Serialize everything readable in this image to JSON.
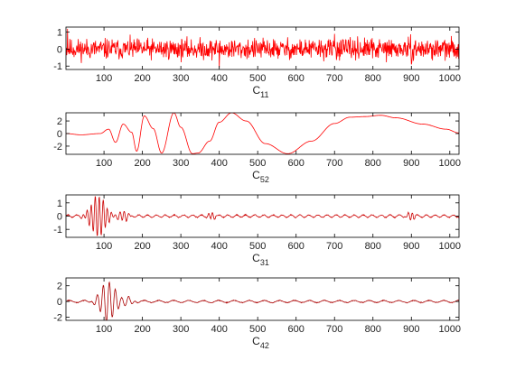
{
  "figure": {
    "background": "#ffffff"
  },
  "chart_data": [
    {
      "type": "line",
      "xlabel": "C",
      "xlabel_sub": "11",
      "xlim": [
        1,
        1024
      ],
      "ylim": [
        -1.2,
        1.3
      ],
      "xticks": [
        100,
        200,
        300,
        400,
        500,
        600,
        700,
        800,
        900,
        1000
      ],
      "yticks": [
        -1,
        0,
        1
      ],
      "color": "#ff0000",
      "signal": {
        "kind": "noise",
        "amp": 0.5,
        "spikes": [
          [
            5,
            1.2
          ],
          [
            400,
            -1.1
          ],
          [
            700,
            0.9
          ],
          [
            900,
            -0.9
          ]
        ],
        "seed": 11
      }
    },
    {
      "type": "line",
      "xlabel": "C",
      "xlabel_sub": "52",
      "xlim": [
        1,
        1024
      ],
      "ylim": [
        -3.3,
        3.3
      ],
      "xticks": [
        100,
        200,
        300,
        400,
        500,
        600,
        700,
        800,
        900,
        1000
      ],
      "yticks": [
        -2,
        0,
        2
      ],
      "color": "#ff0000",
      "signal": {
        "kind": "keypoints",
        "points": [
          [
            1,
            0
          ],
          [
            40,
            -0.2
          ],
          [
            90,
            0
          ],
          [
            112,
            0.7
          ],
          [
            130,
            -1.4
          ],
          [
            150,
            1.5
          ],
          [
            172,
            0.2
          ],
          [
            185,
            -2.8
          ],
          [
            205,
            2.8
          ],
          [
            228,
            0.8
          ],
          [
            250,
            -3.1
          ],
          [
            282,
            3.3
          ],
          [
            300,
            1.0
          ],
          [
            330,
            -3.2
          ],
          [
            345,
            -3.1
          ],
          [
            375,
            -1.2
          ],
          [
            400,
            1.8
          ],
          [
            432,
            3.3
          ],
          [
            470,
            2.0
          ],
          [
            520,
            -1.6
          ],
          [
            578,
            -3.2
          ],
          [
            640,
            -1.2
          ],
          [
            700,
            1.6
          ],
          [
            740,
            2.6
          ],
          [
            780,
            2.7
          ],
          [
            820,
            2.9
          ],
          [
            860,
            2.5
          ],
          [
            930,
            1.5
          ],
          [
            990,
            0.7
          ],
          [
            1024,
            0.1
          ]
        ]
      }
    },
    {
      "type": "line",
      "xlabel": "C",
      "xlabel_sub": "31",
      "xlim": [
        1,
        1024
      ],
      "ylim": [
        -1.6,
        1.6
      ],
      "xticks": [
        100,
        200,
        300,
        400,
        500,
        600,
        700,
        800,
        900,
        1000
      ],
      "yticks": [
        -1,
        0,
        1
      ],
      "color": "#cc0000",
      "signal": {
        "kind": "bursts",
        "base_amp": 0.1,
        "base_freq": 0.27,
        "seed": 31,
        "bursts": [
          [
            85,
            25,
            1.55,
            0.3
          ],
          [
            150,
            15,
            0.4,
            0.28
          ],
          [
            380,
            10,
            0.3,
            0.3
          ],
          [
            900,
            10,
            0.35,
            0.3
          ]
        ]
      }
    },
    {
      "type": "line",
      "xlabel": "C",
      "xlabel_sub": "42",
      "xlim": [
        1,
        1024
      ],
      "ylim": [
        -2.4,
        3.0
      ],
      "xticks": [
        100,
        200,
        300,
        400,
        500,
        600,
        700,
        800,
        900,
        1000
      ],
      "yticks": [
        -2,
        0,
        2
      ],
      "color": "#aa0000",
      "signal": {
        "kind": "bursts",
        "base_amp": 0.15,
        "base_freq": 0.16,
        "seed": 42,
        "bursts": [
          [
            110,
            25,
            2.6,
            0.2
          ],
          [
            160,
            20,
            0.5,
            0.18
          ]
        ]
      }
    }
  ]
}
